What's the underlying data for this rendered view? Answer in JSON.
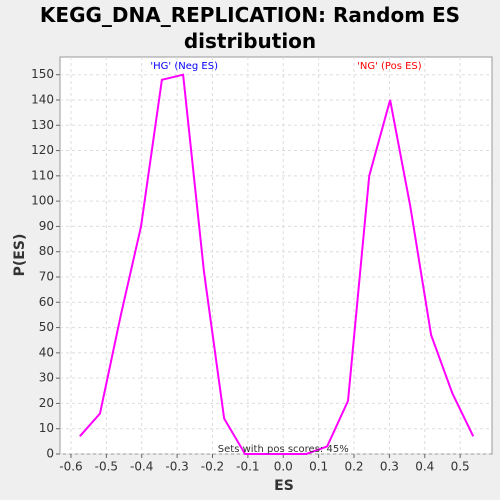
{
  "chart_data": {
    "type": "line",
    "title": "KEGG_DNA_REPLICATION: Random ES distribution",
    "x_label": "ES",
    "y_label": "P(ES)",
    "annotations": [
      "'HG' (Neg ES)",
      "'NG' (Pos ES)",
      "Sets with pos scores: 45%"
    ],
    "annotation_colors": [
      "#0000ff",
      "#ff0000",
      "#333333"
    ],
    "x": [
      -0.575,
      -0.518,
      -0.459,
      -0.402,
      -0.343,
      -0.283,
      -0.224,
      -0.167,
      -0.108,
      -0.051,
      0.008,
      0.065,
      0.124,
      0.183,
      0.243,
      0.302,
      0.359,
      0.418,
      0.478,
      0.537
    ],
    "series": [
      {
        "name": "P(ES)",
        "color": "#ff00ff",
        "values": [
          7,
          16,
          55,
          90,
          148,
          150,
          72,
          14,
          0,
          0,
          0,
          0,
          3,
          21,
          110,
          140,
          98,
          47,
          24,
          7
        ]
      }
    ],
    "xlim": [
      -0.631,
      0.59
    ],
    "ylim": [
      0,
      157
    ],
    "xticks": [
      -0.6,
      -0.5,
      -0.4,
      -0.3,
      -0.2,
      -0.1,
      {
        "value": 0,
        "label": "0.0"
      },
      0.1,
      0.2,
      0.3,
      0.4,
      0.5
    ],
    "yticks": [
      0,
      10,
      20,
      30,
      40,
      50,
      60,
      70,
      80,
      90,
      100,
      110,
      120,
      130,
      140,
      150
    ],
    "grid": true
  }
}
